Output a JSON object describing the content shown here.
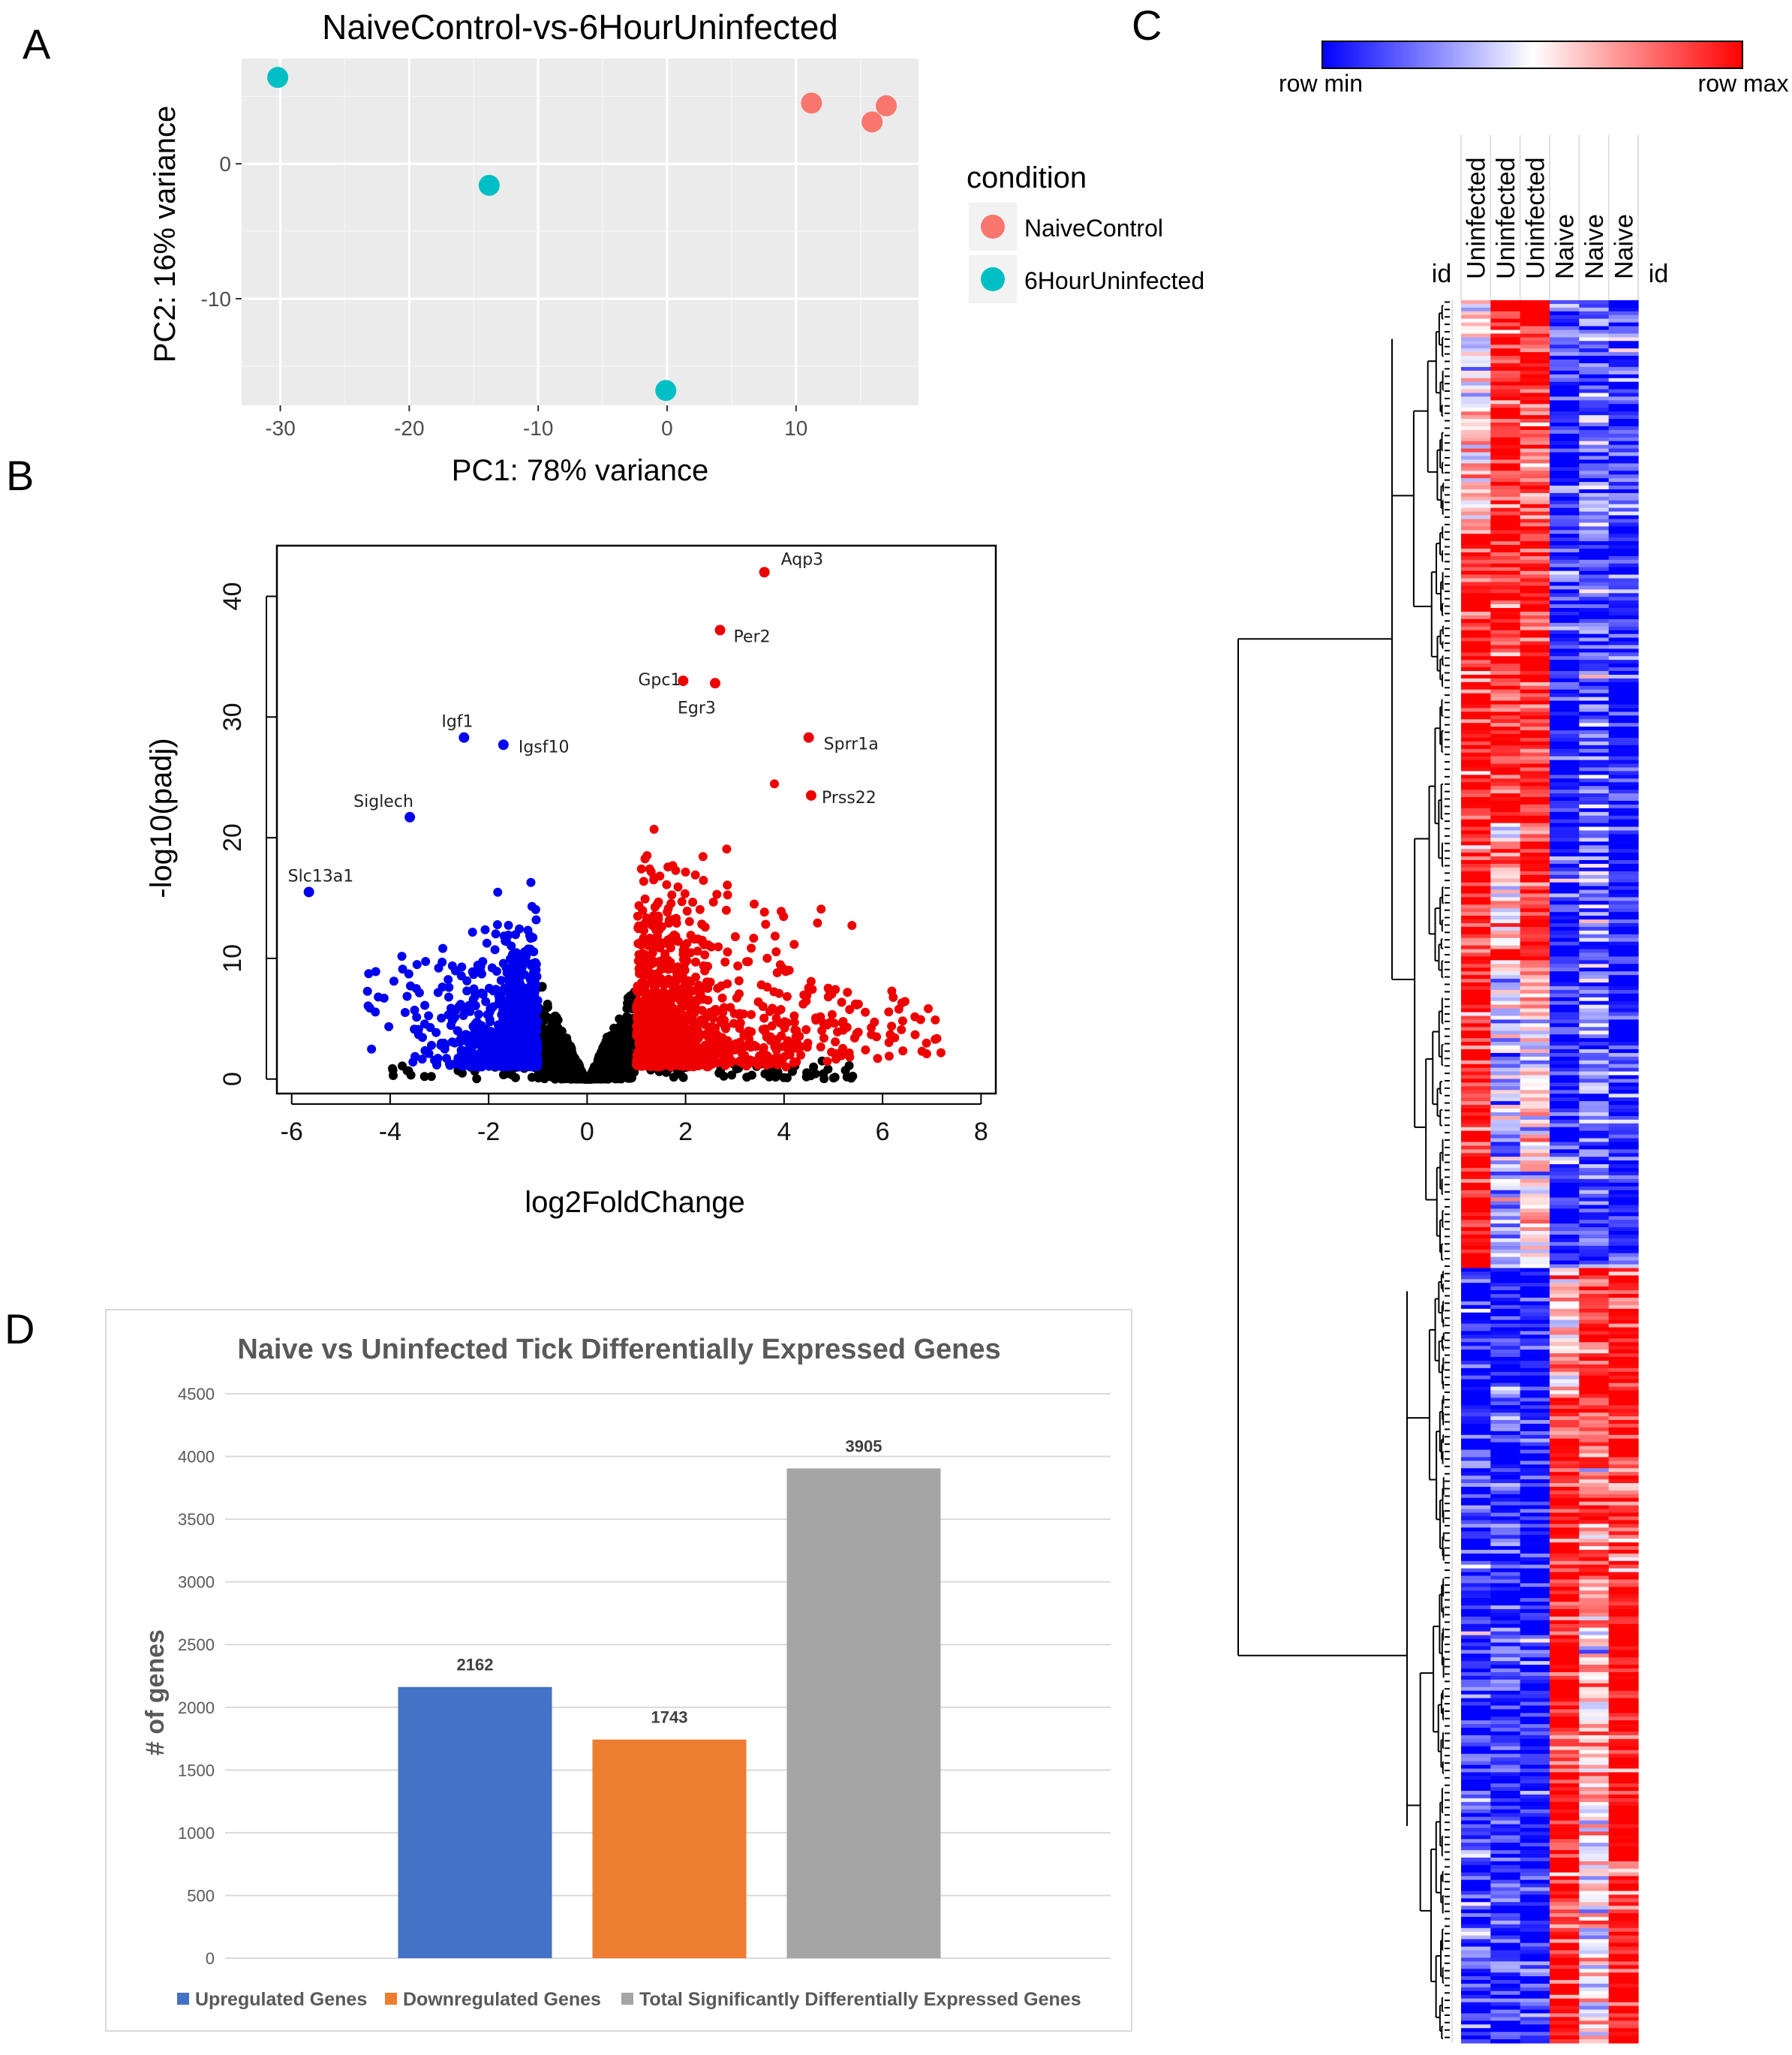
{
  "panels": {
    "A": "A",
    "B": "B",
    "C": "C",
    "D": "D"
  },
  "colors": {
    "naive": "#F8766D",
    "uninfected": "#00BFC4",
    "up": "#4472C4",
    "down": "#ED7D31",
    "total": "#A5A5A5",
    "volcano_blue": "#0000EE",
    "volcano_red": "#EE0000",
    "heat_min": "#0000FF",
    "heat_max": "#FF0000"
  },
  "chart_data": [
    {
      "id": "A",
      "type": "scatter",
      "title": "NaiveControl-vs-6HourUninfected",
      "xlabel": "PC1: 78% variance",
      "ylabel": "PC2: 16% variance",
      "xlim": [
        -33,
        19.5
      ],
      "ylim": [
        -17.9,
        7.8
      ],
      "xticks": [
        -30,
        -20,
        -10,
        0,
        10
      ],
      "xtick_labels": [
        "-30",
        "-20",
        "-10",
        "0",
        "10"
      ],
      "yticks": [
        0,
        -10
      ],
      "ytick_labels": [
        "0",
        "-10"
      ],
      "legend_title": "condition",
      "series": [
        {
          "name": "NaiveControl",
          "points": [
            [
              11.2,
              4.5
            ],
            [
              15.9,
              3.1
            ],
            [
              17.0,
              4.3
            ]
          ]
        },
        {
          "name": "6HourUninfected",
          "points": [
            [
              -30.2,
              6.4
            ],
            [
              -13.8,
              -1.6
            ],
            [
              -0.1,
              -16.8
            ]
          ]
        }
      ]
    },
    {
      "id": "B",
      "type": "scatter",
      "xlabel": "log2FoldChange",
      "ylabel": "-log10(padj)",
      "xlim": [
        -6.3,
        8.3
      ],
      "ylim": [
        -1.2,
        44.2
      ],
      "xticks": [
        -6,
        -4,
        -2,
        0,
        2,
        4,
        6,
        8
      ],
      "xtick_labels": [
        "-6",
        "-4",
        "-2",
        "0",
        "2",
        "4",
        "6",
        "8"
      ],
      "yticks": [
        0,
        10,
        20,
        30,
        40
      ],
      "ytick_labels": [
        "0",
        "10",
        "20",
        "30",
        "40"
      ],
      "labeled_points": [
        {
          "label": "Aqp3",
          "x": 3.6,
          "y": 42.0,
          "group": "up"
        },
        {
          "label": "Per2",
          "x": 2.7,
          "y": 37.2,
          "group": "up"
        },
        {
          "label": "Gpc1",
          "x": 1.95,
          "y": 33.0,
          "group": "up"
        },
        {
          "label": "Egr3",
          "x": 2.6,
          "y": 32.8,
          "group": "up"
        },
        {
          "label": "Sprr1a",
          "x": 4.5,
          "y": 28.3,
          "group": "up"
        },
        {
          "label": "Prss22",
          "x": 4.55,
          "y": 23.5,
          "group": "up"
        },
        {
          "label": "Igf1",
          "x": -2.5,
          "y": 28.3,
          "group": "down"
        },
        {
          "label": "Igsf10",
          "x": -1.7,
          "y": 27.7,
          "group": "down"
        },
        {
          "label": "Siglech",
          "x": -3.6,
          "y": 21.7,
          "group": "down"
        },
        {
          "label": "Slc13a1",
          "x": -5.65,
          "y": 15.5,
          "group": "down"
        }
      ],
      "groups": [
        "up",
        "down",
        "ns"
      ],
      "summary": {
        "up_n": 2162,
        "down_n": 1743
      }
    },
    {
      "id": "C",
      "type": "heatmap",
      "scale_min_label": "row min",
      "scale_max_label": "row max",
      "columns": [
        "id",
        "Uninfected",
        "Uninfected",
        "Uninfected",
        "Naive",
        "Naive",
        "Naive",
        "id"
      ],
      "cluster_split_fraction": 0.555
    },
    {
      "id": "D",
      "type": "bar",
      "title": "Naive vs Uninfected Tick Differentially Expressed Genes",
      "ylabel": "# of genes",
      "ylim": [
        0,
        4500
      ],
      "yticks": [
        0,
        500,
        1000,
        1500,
        2000,
        2500,
        3000,
        3500,
        4000,
        4500
      ],
      "ytick_labels": [
        "0",
        "500",
        "1000",
        "1500",
        "2000",
        "2500",
        "3000",
        "3500",
        "4000",
        "4500"
      ],
      "series": [
        {
          "name": "Upregulated Genes",
          "value": 2162,
          "label": "2162"
        },
        {
          "name": "Downregulated Genes",
          "value": 1743,
          "label": "1743"
        },
        {
          "name": "Total Significantly Differentially Expressed Genes",
          "value": 3905,
          "label": "3905"
        }
      ]
    }
  ]
}
